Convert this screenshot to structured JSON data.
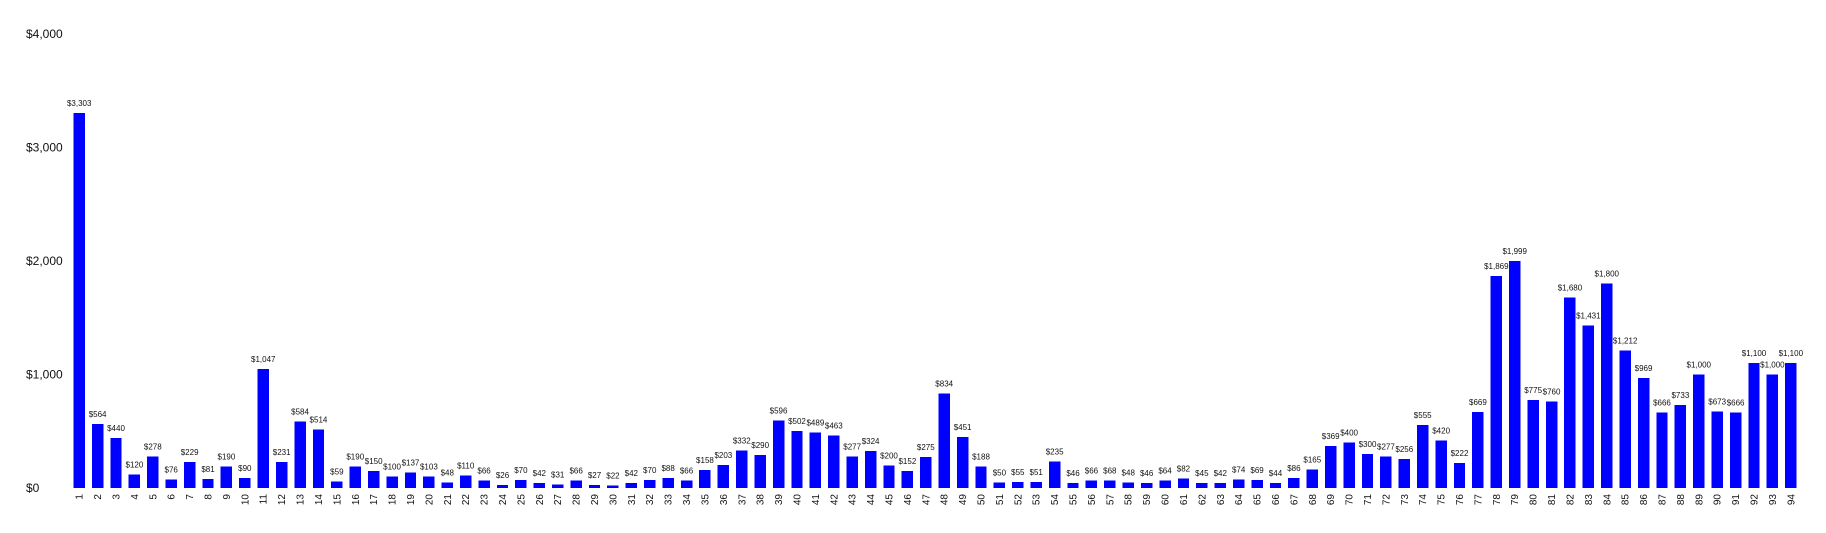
{
  "chart_data": {
    "type": "bar",
    "title": "",
    "xlabel": "",
    "ylabel": "",
    "ylim": [
      0,
      4000
    ],
    "yticks": [
      0,
      1000,
      2000,
      3000,
      4000
    ],
    "ytick_labels": [
      "$0",
      "$1,000",
      "$2,000",
      "$3,000",
      "$4,000"
    ],
    "grid": false,
    "legend": "none",
    "bar_color": "#0000ff",
    "categories": [
      "1",
      "2",
      "3",
      "4",
      "5",
      "6",
      "7",
      "8",
      "9",
      "10",
      "11",
      "12",
      "13",
      "14",
      "15",
      "16",
      "17",
      "18",
      "19",
      "20",
      "21",
      "22",
      "23",
      "24",
      "25",
      "26",
      "27",
      "28",
      "29",
      "30",
      "31",
      "32",
      "33",
      "34",
      "35",
      "36",
      "37",
      "38",
      "39",
      "40",
      "41",
      "42",
      "43",
      "44",
      "45",
      "46",
      "47",
      "48",
      "49",
      "50",
      "51",
      "52",
      "53",
      "54",
      "55",
      "56",
      "57",
      "58",
      "59",
      "60",
      "61",
      "62",
      "63",
      "64",
      "65",
      "66",
      "67",
      "68",
      "69",
      "70",
      "71",
      "72",
      "73",
      "74",
      "75",
      "76",
      "77",
      "78",
      "79",
      "80",
      "81",
      "82",
      "83",
      "84",
      "85",
      "86",
      "87",
      "88",
      "89",
      "90",
      "91",
      "92",
      "93",
      "94"
    ],
    "values": [
      3303,
      564,
      440,
      120,
      278,
      76,
      229,
      81,
      190,
      90,
      1047,
      231,
      584,
      514,
      59,
      190,
      150,
      100,
      137,
      103,
      48,
      110,
      66,
      26,
      70,
      42,
      31,
      66,
      27,
      22,
      42,
      70,
      88,
      66,
      158,
      203,
      332,
      290,
      596,
      502,
      489,
      463,
      277,
      324,
      200,
      152,
      275,
      834,
      451,
      188,
      50,
      55,
      51,
      235,
      46,
      66,
      68,
      48,
      46,
      64,
      82,
      45,
      42,
      74,
      69,
      44,
      86,
      165,
      369,
      400,
      300,
      277,
      256,
      555,
      420,
      222,
      669,
      1869,
      1999,
      775,
      760,
      1680,
      1431,
      1800,
      1212,
      969,
      666,
      733,
      1000,
      673,
      666,
      1100,
      1000,
      1100
    ],
    "data_labels": [
      "$3,303",
      "$564",
      "$440",
      "$120",
      "$278",
      "$76",
      "$229",
      "$81",
      "$190",
      "$90",
      "$1,047",
      "$231",
      "$584",
      "$514",
      "$59",
      "$190",
      "$150",
      "$100",
      "$137",
      "$103",
      "$48",
      "$110",
      "$66",
      "$26",
      "$70",
      "$42",
      "$31",
      "$66",
      "$27",
      "$22",
      "$42",
      "$70",
      "$88",
      "$66",
      "$158",
      "$203",
      "$332",
      "$290",
      "$596",
      "$502",
      "$489",
      "$463",
      "$277",
      "$324",
      "$200",
      "$152",
      "$275",
      "$834",
      "$451",
      "$188",
      "$50",
      "$55",
      "$51",
      "$235",
      "$46",
      "$66",
      "$68",
      "$48",
      "$46",
      "$64",
      "$82",
      "$45",
      "$42",
      "$74",
      "$69",
      "$44",
      "$86",
      "$165",
      "$369",
      "$400",
      "$300",
      "$277",
      "$256",
      "$555",
      "$420",
      "$222",
      "$669",
      "$1,869",
      "$1,999",
      "$775",
      "$760",
      "$1,680",
      "$1,431",
      "$1,800",
      "$1,212",
      "$969",
      "$666",
      "$733",
      "$1,000",
      "$673",
      "$666",
      "$1,100",
      "$1,000",
      "$1,100"
    ]
  }
}
